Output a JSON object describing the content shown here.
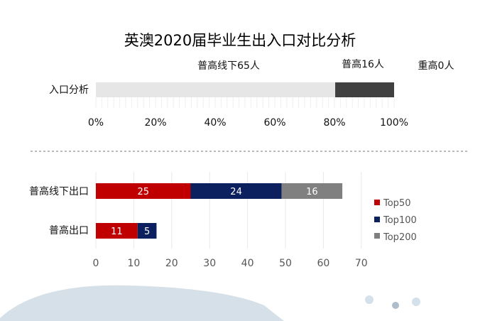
{
  "colors": {
    "general_high": "#e6e6e6",
    "regular_high": "#404040",
    "key_high": "#000000",
    "top50": "#c00000",
    "top100": "#0c1f5e",
    "top200": "#808080",
    "wave": "#d6e0e8",
    "dots": [
      "#d4e0ea",
      "#aebdcc",
      "#d4e0ea"
    ]
  },
  "chart_data": [
    {
      "type": "bar",
      "orientation": "horizontal",
      "stacking": "percent",
      "title": "英澳2020届毕业生出入口对比分析",
      "categories": [
        "入口分析"
      ],
      "series": [
        {
          "name": "普高线下65人",
          "values": [
            65
          ],
          "color": "#e6e6e6"
        },
        {
          "name": "普高16人",
          "values": [
            16
          ],
          "color": "#404040"
        },
        {
          "name": "重高0人",
          "values": [
            0
          ],
          "color": "#000000"
        }
      ],
      "x_ticks": [
        "0%",
        "20%",
        "40%",
        "60%",
        "80%",
        "100%"
      ],
      "xlim": [
        0,
        100
      ]
    },
    {
      "type": "bar",
      "orientation": "horizontal",
      "stacking": "stacked",
      "categories": [
        "普高线下出口",
        "普高出口"
      ],
      "series": [
        {
          "name": "Top50",
          "values": [
            25,
            11
          ],
          "color": "#c00000"
        },
        {
          "name": "Top100",
          "values": [
            24,
            5
          ],
          "color": "#0c1f5e"
        },
        {
          "name": "Top200",
          "values": [
            16,
            0
          ],
          "color": "#808080"
        }
      ],
      "x_ticks": [
        "0",
        "10",
        "20",
        "30",
        "40",
        "50",
        "60",
        "70"
      ],
      "xlim": [
        0,
        70
      ],
      "legend": "right"
    }
  ]
}
